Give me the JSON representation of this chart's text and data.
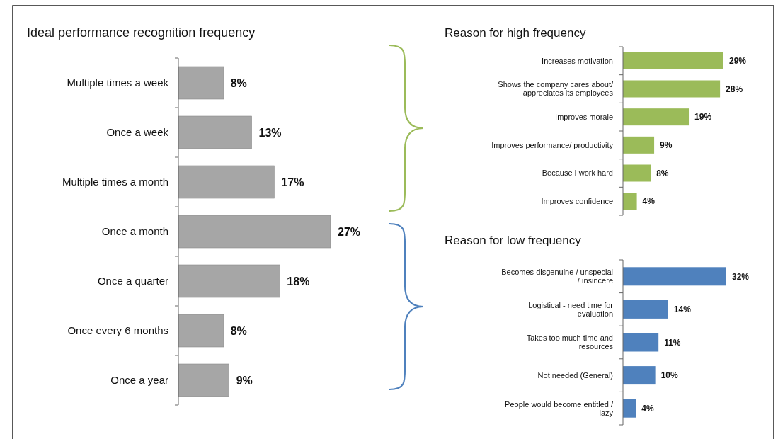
{
  "chart_data": [
    {
      "type": "bar",
      "orientation": "horizontal",
      "title": "Ideal performance recognition frequency",
      "categories": [
        "Multiple times a week",
        "Once a week",
        "Multiple times a month",
        "Once a month",
        "Once a quarter",
        "Once every 6 months",
        "Once a year"
      ],
      "values": [
        8,
        13,
        17,
        27,
        18,
        8,
        9
      ],
      "value_labels": [
        "8%",
        "13%",
        "17%",
        "27%",
        "18%",
        "8%",
        "9%"
      ],
      "color": "#a6a6a6"
    },
    {
      "type": "bar",
      "orientation": "horizontal",
      "title": "Reason for high frequency",
      "categories": [
        "Increases motivation",
        "Shows the company cares about/\nappreciates its employees",
        "Improves morale",
        "Improves performance/ productivity",
        "Because I work hard",
        "Improves confidence"
      ],
      "values": [
        29,
        28,
        19,
        9,
        8,
        4
      ],
      "value_labels": [
        "29%",
        "28%",
        "19%",
        "9%",
        "8%",
        "4%"
      ],
      "color": "#9bbb59"
    },
    {
      "type": "bar",
      "orientation": "horizontal",
      "title": "Reason for low frequency",
      "categories": [
        "Becomes disgenuine / unspecial\n/ insincere",
        "Logistical - need time for\nevaluation",
        "Takes too much time and\nresources",
        "Not needed (General)",
        "People would become entitled /\nlazy"
      ],
      "values": [
        32,
        14,
        11,
        10,
        4
      ],
      "value_labels": [
        "32%",
        "14%",
        "11%",
        "10%",
        "4%"
      ],
      "color": "#4f81bd"
    }
  ]
}
